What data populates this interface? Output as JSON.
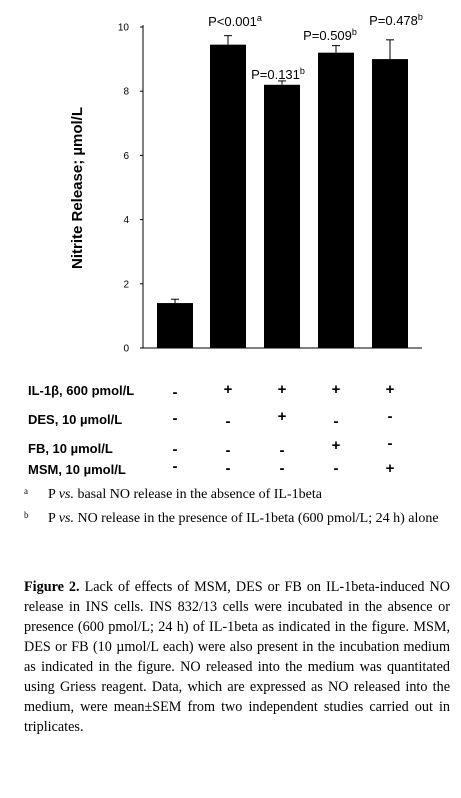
{
  "chart_data": {
    "type": "bar",
    "categories": [
      "basal",
      "IL-1β",
      "IL-1β + DES",
      "IL-1β + FB",
      "IL-1β + MSM"
    ],
    "values": [
      1.4,
      9.45,
      8.2,
      9.2,
      9.0
    ],
    "errors": [
      0.12,
      0.28,
      0.12,
      0.22,
      0.6
    ],
    "annotations": [
      "",
      "P<0.001",
      "P=0.131",
      "P=0.509",
      "P=0.478"
    ],
    "annotation_superscripts": [
      "",
      "a",
      "b",
      "b",
      "b"
    ],
    "ylabel": "Nitrite Release; µmol/L",
    "ylim": [
      0,
      10
    ],
    "yticks": [
      "0",
      "2",
      "4",
      "6",
      "8",
      "10"
    ],
    "grid": false,
    "bar_color": "#000000"
  },
  "treatments": [
    {
      "label": "IL-1β, 600 pmol/L",
      "signs": [
        "-",
        "+",
        "+",
        "+",
        "+"
      ]
    },
    {
      "label": "DES, 10 µmol/L",
      "signs": [
        "-",
        "-",
        "+",
        "-",
        "-"
      ]
    },
    {
      "label": "FB, 10 µmol/L",
      "signs": [
        "-",
        "-",
        "-",
        "+",
        "-"
      ]
    },
    {
      "label": "MSM, 10 µmol/L",
      "signs": [
        "-",
        "-",
        "-",
        "-",
        "+"
      ]
    }
  ],
  "footnotes": [
    {
      "mark": "a",
      "pre": "P ",
      "vs": "vs.",
      "text": " basal NO release in the absence of IL-1beta"
    },
    {
      "mark": "b",
      "pre": "P ",
      "vs": "vs.",
      "text": " NO release in the presence of IL-1beta (600 pmol/L; 24 h) alone"
    }
  ],
  "caption": {
    "label": "Figure 2.",
    "text": " Lack of effects of MSM, DES or FB on IL-1beta-induced NO release in INS cells. INS 832/13 cells were incubated in the absence or presence (600 pmol/L; 24 h) of IL-1beta as indicated in the figure. MSM, DES or FB (10 µmol/L each) were also present in the incubation medium as indicated in the figure. NO released into the medium was quantitated using Griess reagent. Data, which are expressed as NO released into the medium, were mean±SEM from two independent studies carried out in triplicates."
  }
}
